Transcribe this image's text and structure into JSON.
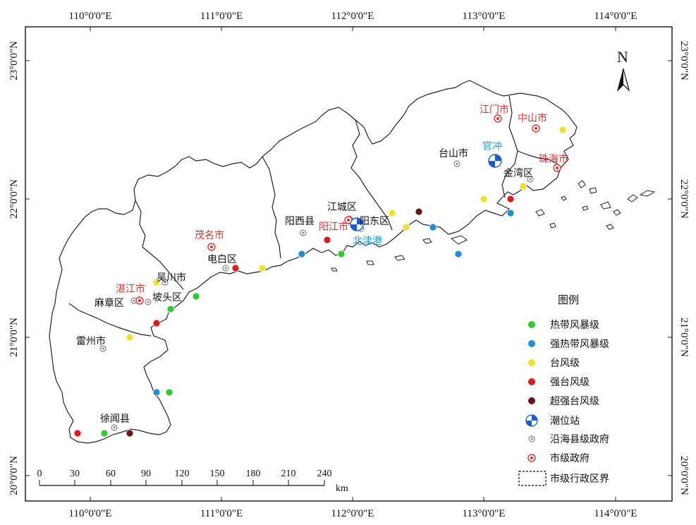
{
  "lon_labels": [
    "110°0'0\"E",
    "111°0'0\"E",
    "112°0'0\"E",
    "113°0'0\"E",
    "114°0'0\"E"
  ],
  "lat_labels": [
    "23°0'0\"N",
    "22°0'0\"N",
    "21°0'0\"N",
    "20°0'0\"N"
  ],
  "north_label": "N",
  "cities": [
    {
      "name": "江门市",
      "color": "#e0312f",
      "type": "city-gov"
    },
    {
      "name": "中山市",
      "color": "#e0312f",
      "type": "city-gov"
    },
    {
      "name": "珠海市",
      "color": "#e0312f",
      "type": "city-gov"
    },
    {
      "name": "茂名市",
      "color": "#e0312f",
      "type": "city-gov"
    },
    {
      "name": "阳江市",
      "color": "#e0312f",
      "type": "city-gov"
    },
    {
      "name": "湛江市",
      "color": "#e0312f",
      "type": "city-gov"
    },
    {
      "name": "台山市",
      "color": "#111111",
      "type": "county-gov"
    },
    {
      "name": "金湾区",
      "color": "#111111",
      "type": "county-gov"
    },
    {
      "name": "江城区",
      "color": "#111111",
      "type": "county-gov"
    },
    {
      "name": "阳西县",
      "color": "#111111",
      "type": "county-gov"
    },
    {
      "name": "阳东区",
      "color": "#111111",
      "type": "county-gov"
    },
    {
      "name": "电白区",
      "color": "#111111",
      "type": "county-gov"
    },
    {
      "name": "吴川市",
      "color": "#111111",
      "type": "county-gov"
    },
    {
      "name": "坡头区",
      "color": "#111111",
      "type": "county-gov"
    },
    {
      "name": "麻章区",
      "color": "#111111",
      "type": "county-gov"
    },
    {
      "name": "雷州市",
      "color": "#111111",
      "type": "county-gov"
    },
    {
      "name": "徐闻县",
      "color": "#111111",
      "type": "county-gov"
    }
  ],
  "stations": [
    {
      "name": "官冲",
      "color": "#1aa0d8"
    },
    {
      "name": "北津港",
      "color": "#1aa0d8"
    }
  ],
  "legend": {
    "title": "图例",
    "items": [
      {
        "label": "热带风暴级",
        "color": "#2ecc2e"
      },
      {
        "label": "强热带风暴级",
        "color": "#1e8fd6"
      },
      {
        "label": "台风级",
        "color": "#f2e12a"
      },
      {
        "label": "强台风级",
        "color": "#e0191b"
      },
      {
        "label": "超强台风级",
        "color": "#6b1212"
      },
      {
        "label": "潮位站",
        "color": "#1a5fc9"
      },
      {
        "label": "沿海县级政府",
        "color": "#888888"
      },
      {
        "label": "市级政府",
        "color": "#e0312f"
      },
      {
        "label": "市级行政区界",
        "color": "#111111"
      }
    ]
  },
  "scale": {
    "ticks": [
      "0",
      "30",
      "60",
      "90",
      "120",
      "150",
      "180",
      "210",
      "240"
    ],
    "unit": "km"
  }
}
